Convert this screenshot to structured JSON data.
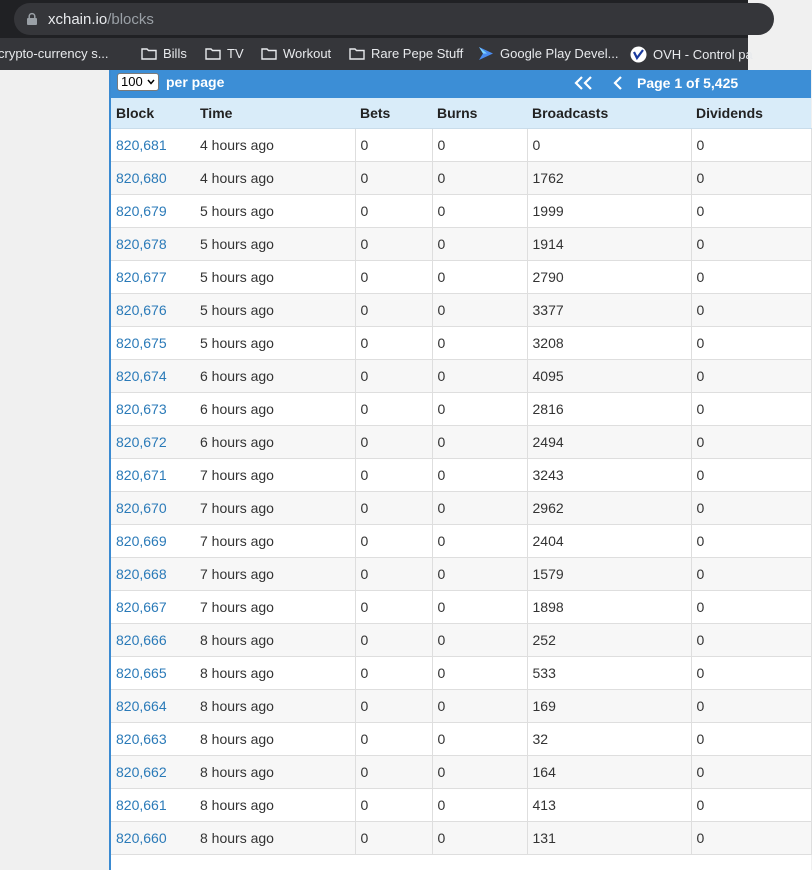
{
  "browser": {
    "url_host": "xchain.io",
    "url_path": "/blocks",
    "bookmarks": [
      {
        "label": "crypto-currency s...",
        "icon": "none"
      },
      {
        "label": "Bills",
        "icon": "folder-icon"
      },
      {
        "label": "TV",
        "icon": "folder-icon"
      },
      {
        "label": "Workout",
        "icon": "folder-icon"
      },
      {
        "label": "Rare Pepe Stuff",
        "icon": "folder-icon"
      },
      {
        "label": "Google Play Devel...",
        "icon": "google-play-icon"
      },
      {
        "label": "OVH - Control pa",
        "icon": "ovh-icon"
      }
    ]
  },
  "pager": {
    "per_page_value": "100",
    "per_page_label": "per page",
    "page_info": "Page 1 of 5,425"
  },
  "table": {
    "headers": [
      "Block",
      "Time",
      "Bets",
      "Burns",
      "Broadcasts",
      "Dividends"
    ],
    "rows": [
      [
        "820,681",
        "4 hours ago",
        "0",
        "0",
        "0",
        "0"
      ],
      [
        "820,680",
        "4 hours ago",
        "0",
        "0",
        "1762",
        "0"
      ],
      [
        "820,679",
        "5 hours ago",
        "0",
        "0",
        "1999",
        "0"
      ],
      [
        "820,678",
        "5 hours ago",
        "0",
        "0",
        "1914",
        "0"
      ],
      [
        "820,677",
        "5 hours ago",
        "0",
        "0",
        "2790",
        "0"
      ],
      [
        "820,676",
        "5 hours ago",
        "0",
        "0",
        "3377",
        "0"
      ],
      [
        "820,675",
        "5 hours ago",
        "0",
        "0",
        "3208",
        "0"
      ],
      [
        "820,674",
        "6 hours ago",
        "0",
        "0",
        "4095",
        "0"
      ],
      [
        "820,673",
        "6 hours ago",
        "0",
        "0",
        "2816",
        "0"
      ],
      [
        "820,672",
        "6 hours ago",
        "0",
        "0",
        "2494",
        "0"
      ],
      [
        "820,671",
        "7 hours ago",
        "0",
        "0",
        "3243",
        "0"
      ],
      [
        "820,670",
        "7 hours ago",
        "0",
        "0",
        "2962",
        "0"
      ],
      [
        "820,669",
        "7 hours ago",
        "0",
        "0",
        "2404",
        "0"
      ],
      [
        "820,668",
        "7 hours ago",
        "0",
        "0",
        "1579",
        "0"
      ],
      [
        "820,667",
        "7 hours ago",
        "0",
        "0",
        "1898",
        "0"
      ],
      [
        "820,666",
        "8 hours ago",
        "0",
        "0",
        "252",
        "0"
      ],
      [
        "820,665",
        "8 hours ago",
        "0",
        "0",
        "533",
        "0"
      ],
      [
        "820,664",
        "8 hours ago",
        "0",
        "0",
        "169",
        "0"
      ],
      [
        "820,663",
        "8 hours ago",
        "0",
        "0",
        "32",
        "0"
      ],
      [
        "820,662",
        "8 hours ago",
        "0",
        "0",
        "164",
        "0"
      ],
      [
        "820,661",
        "8 hours ago",
        "0",
        "0",
        "413",
        "0"
      ],
      [
        "820,660",
        "8 hours ago",
        "0",
        "0",
        "131",
        "0"
      ]
    ]
  },
  "colors": {
    "pager_bg": "#3c8ed6",
    "header_bg": "#d9ecf9",
    "link": "#2a7ab8"
  }
}
